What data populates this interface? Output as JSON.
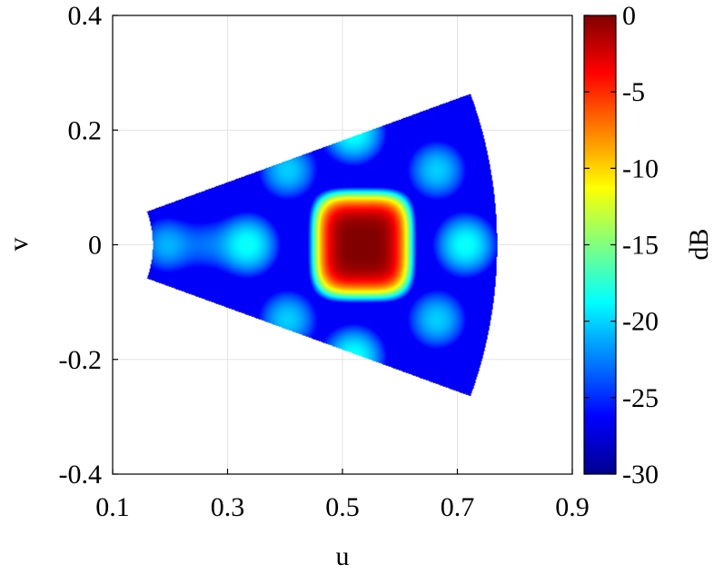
{
  "chart_data": {
    "type": "heatmap",
    "xlabel": "u",
    "ylabel": "v",
    "colorbar_label": "dB",
    "xlim": [
      0.1,
      0.9
    ],
    "ylim": [
      -0.4,
      0.4
    ],
    "clim": [
      -30,
      0
    ],
    "x_ticks": [
      0.1,
      0.3,
      0.5,
      0.7,
      0.9
    ],
    "x_tick_labels": [
      "0.1",
      "0.3",
      "0.5",
      "0.7",
      "0.9"
    ],
    "y_ticks": [
      0.4,
      0.2,
      0,
      -0.2,
      -0.4
    ],
    "y_tick_labels": [
      "0.4",
      "0.2",
      "0",
      "-0.2",
      "-0.4"
    ],
    "colorbar_ticks": [
      0,
      -5,
      -10,
      -15,
      -20,
      -25,
      -30
    ],
    "colorbar_tick_labels": [
      "0",
      "-5",
      "-10",
      "-15",
      "-20",
      "-25",
      "-30"
    ],
    "grid": true,
    "colormap": "jet",
    "region": {
      "shape": "annular-sector",
      "vertex_uv": [
        0.0,
        0.0
      ],
      "half_angle_deg": 20,
      "inner_radius": 0.17,
      "outer_radius": 0.77
    },
    "main_lobe": {
      "u": 0.535,
      "v": 0.0,
      "peak_db": 0
    },
    "side_lobes": [
      {
        "u": 0.52,
        "v": 0.195,
        "level_db": -21
      },
      {
        "u": 0.52,
        "v": -0.195,
        "level_db": -21
      },
      {
        "u": 0.715,
        "v": 0.0,
        "level_db": -21
      },
      {
        "u": 0.335,
        "v": 0.0,
        "level_db": -21
      },
      {
        "u": 0.665,
        "v": 0.13,
        "level_db": -23
      },
      {
        "u": 0.665,
        "v": -0.13,
        "level_db": -23
      },
      {
        "u": 0.405,
        "v": 0.13,
        "level_db": -23
      },
      {
        "u": 0.405,
        "v": -0.13,
        "level_db": -23
      },
      {
        "u": 0.195,
        "v": 0.0,
        "level_db": -24
      },
      {
        "u": 0.265,
        "v": 0.0,
        "level_db": -27
      }
    ]
  }
}
